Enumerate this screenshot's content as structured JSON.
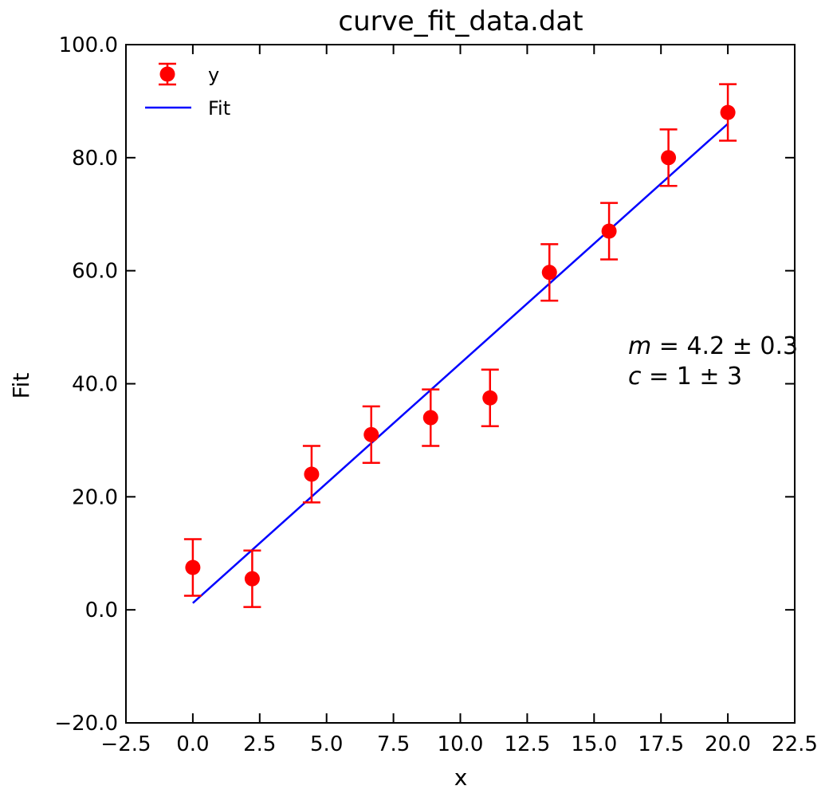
{
  "chart_data": {
    "type": "scatter",
    "title": "curve_fit_data.dat",
    "xlabel": "x",
    "ylabel": "Fit",
    "xlim": [
      -2.5,
      22.5
    ],
    "ylim": [
      -20,
      100
    ],
    "xticks": [
      -2.5,
      0.0,
      2.5,
      5.0,
      7.5,
      10.0,
      12.5,
      15.0,
      17.5,
      20.0,
      22.5
    ],
    "xtick_labels": [
      "−2.5",
      "0.0",
      "2.5",
      "5.0",
      "7.5",
      "10.0",
      "12.5",
      "15.0",
      "17.5",
      "20.0",
      "22.5"
    ],
    "yticks": [
      -20,
      0,
      20,
      40,
      60,
      80,
      100
    ],
    "ytick_labels": [
      "−20.0",
      "0.0",
      "20.0",
      "40.0",
      "60.0",
      "80.0",
      "100.0"
    ],
    "grid": false,
    "legend_position": "top-left",
    "series": [
      {
        "name": "y",
        "kind": "errorbar",
        "color": "#ff0000",
        "x": [
          0.0,
          2.22,
          4.44,
          6.67,
          8.89,
          11.11,
          13.33,
          15.56,
          17.78,
          20.0
        ],
        "y": [
          7.5,
          5.5,
          24.0,
          31.0,
          34.0,
          37.5,
          59.7,
          67.0,
          80.0,
          88.0
        ],
        "yerr": [
          5,
          5,
          5,
          5,
          5,
          5,
          5,
          5,
          5,
          5
        ]
      },
      {
        "name": "Fit",
        "kind": "line",
        "color": "#0000ff",
        "x": [
          0.0,
          20.0
        ],
        "y": [
          1.2,
          86.0
        ]
      }
    ],
    "annotation": {
      "m_symbol": "m",
      "m_text": " = 4.2 ± 0.3",
      "c_symbol": "c",
      "c_text": " = 1 ± 3"
    }
  }
}
